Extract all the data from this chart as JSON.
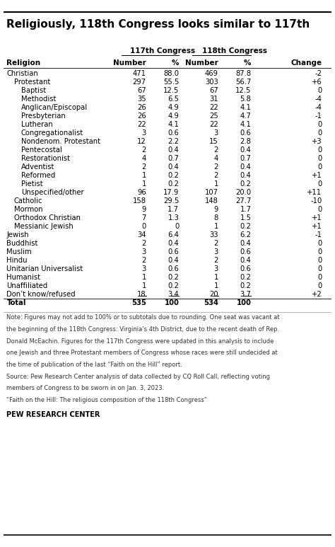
{
  "title": "Religiously, 118th Congress looks similar to 117th",
  "rows": [
    {
      "label": "Christian",
      "indent": 0,
      "bold": false,
      "c117n": "471",
      "c117p": "88.0",
      "c118n": "469",
      "c118p": "87.8",
      "change": "-2",
      "underline": false
    },
    {
      "label": "Protestant",
      "indent": 1,
      "bold": false,
      "c117n": "297",
      "c117p": "55.5",
      "c118n": "303",
      "c118p": "56.7",
      "change": "+6",
      "underline": false
    },
    {
      "label": "Baptist",
      "indent": 2,
      "bold": false,
      "c117n": "67",
      "c117p": "12.5",
      "c118n": "67",
      "c118p": "12.5",
      "change": "0",
      "underline": false
    },
    {
      "label": "Methodist",
      "indent": 2,
      "bold": false,
      "c117n": "35",
      "c117p": "6.5",
      "c118n": "31",
      "c118p": "5.8",
      "change": "-4",
      "underline": false
    },
    {
      "label": "Anglican/Episcopal",
      "indent": 2,
      "bold": false,
      "c117n": "26",
      "c117p": "4.9",
      "c118n": "22",
      "c118p": "4.1",
      "change": "-4",
      "underline": false
    },
    {
      "label": "Presbyterian",
      "indent": 2,
      "bold": false,
      "c117n": "26",
      "c117p": "4.9",
      "c118n": "25",
      "c118p": "4.7",
      "change": "-1",
      "underline": false
    },
    {
      "label": "Lutheran",
      "indent": 2,
      "bold": false,
      "c117n": "22",
      "c117p": "4.1",
      "c118n": "22",
      "c118p": "4.1",
      "change": "0",
      "underline": false
    },
    {
      "label": "Congregationalist",
      "indent": 2,
      "bold": false,
      "c117n": "3",
      "c117p": "0.6",
      "c118n": "3",
      "c118p": "0.6",
      "change": "0",
      "underline": false
    },
    {
      "label": "Nondenom. Protestant",
      "indent": 2,
      "bold": false,
      "c117n": "12",
      "c117p": "2.2",
      "c118n": "15",
      "c118p": "2.8",
      "change": "+3",
      "underline": false
    },
    {
      "label": "Pentecostal",
      "indent": 2,
      "bold": false,
      "c117n": "2",
      "c117p": "0.4",
      "c118n": "2",
      "c118p": "0.4",
      "change": "0",
      "underline": false
    },
    {
      "label": "Restorationist",
      "indent": 2,
      "bold": false,
      "c117n": "4",
      "c117p": "0.7",
      "c118n": "4",
      "c118p": "0.7",
      "change": "0",
      "underline": false
    },
    {
      "label": "Adventist",
      "indent": 2,
      "bold": false,
      "c117n": "2",
      "c117p": "0.4",
      "c118n": "2",
      "c118p": "0.4",
      "change": "0",
      "underline": false
    },
    {
      "label": "Reformed",
      "indent": 2,
      "bold": false,
      "c117n": "1",
      "c117p": "0.2",
      "c118n": "2",
      "c118p": "0.4",
      "change": "+1",
      "underline": false
    },
    {
      "label": "Pietist",
      "indent": 2,
      "bold": false,
      "c117n": "1",
      "c117p": "0.2",
      "c118n": "1",
      "c118p": "0.2",
      "change": "0",
      "underline": false
    },
    {
      "label": "Unspecified/other",
      "indent": 2,
      "bold": false,
      "c117n": "96",
      "c117p": "17.9",
      "c118n": "107",
      "c118p": "20.0",
      "change": "+11",
      "underline": false
    },
    {
      "label": "Catholic",
      "indent": 1,
      "bold": false,
      "c117n": "158",
      "c117p": "29.5",
      "c118n": "148",
      "c118p": "27.7",
      "change": "-10",
      "underline": false
    },
    {
      "label": "Mormon",
      "indent": 1,
      "bold": false,
      "c117n": "9",
      "c117p": "1.7",
      "c118n": "9",
      "c118p": "1.7",
      "change": "0",
      "underline": false
    },
    {
      "label": "Orthodox Christian",
      "indent": 1,
      "bold": false,
      "c117n": "7",
      "c117p": "1.3",
      "c118n": "8",
      "c118p": "1.5",
      "change": "+1",
      "underline": false
    },
    {
      "label": "Messianic Jewish",
      "indent": 1,
      "bold": false,
      "c117n": "0",
      "c117p": "0",
      "c118n": "1",
      "c118p": "0.2",
      "change": "+1",
      "underline": false
    },
    {
      "label": "Jewish",
      "indent": 0,
      "bold": false,
      "c117n": "34",
      "c117p": "6.4",
      "c118n": "33",
      "c118p": "6.2",
      "change": "-1",
      "underline": false
    },
    {
      "label": "Buddhist",
      "indent": 0,
      "bold": false,
      "c117n": "2",
      "c117p": "0.4",
      "c118n": "2",
      "c118p": "0.4",
      "change": "0",
      "underline": false
    },
    {
      "label": "Muslim",
      "indent": 0,
      "bold": false,
      "c117n": "3",
      "c117p": "0.6",
      "c118n": "3",
      "c118p": "0.6",
      "change": "0",
      "underline": false
    },
    {
      "label": "Hindu",
      "indent": 0,
      "bold": false,
      "c117n": "2",
      "c117p": "0.4",
      "c118n": "2",
      "c118p": "0.4",
      "change": "0",
      "underline": false
    },
    {
      "label": "Unitarian Universalist",
      "indent": 0,
      "bold": false,
      "c117n": "3",
      "c117p": "0.6",
      "c118n": "3",
      "c118p": "0.6",
      "change": "0",
      "underline": false
    },
    {
      "label": "Humanist",
      "indent": 0,
      "bold": false,
      "c117n": "1",
      "c117p": "0.2",
      "c118n": "1",
      "c118p": "0.2",
      "change": "0",
      "underline": false
    },
    {
      "label": "Unaffiliated",
      "indent": 0,
      "bold": false,
      "c117n": "1",
      "c117p": "0.2",
      "c118n": "1",
      "c118p": "0.2",
      "change": "0",
      "underline": false
    },
    {
      "label": "Don’t know/refused",
      "indent": 0,
      "bold": false,
      "c117n": "18",
      "c117p": "3.4",
      "c118n": "20",
      "c118p": "3.7",
      "change": "+2",
      "underline": true
    },
    {
      "label": "Total",
      "indent": 0,
      "bold": true,
      "c117n": "535",
      "c117p": "100",
      "c118n": "534",
      "c118p": "100",
      "change": "",
      "underline": false
    }
  ],
  "note_line1": "Note: Figures may not add to 100% or to subtotals due to rounding. One seat was vacant at",
  "note_line2": "the beginning of the 118th Congress: Virginia’s 4th District, due to the recent death of Rep.",
  "note_line3": "Donald McEachin. Figures for the 117th Congress were updated in this analysis to include",
  "note_line4": "one Jewish and three Protestant members of Congress whose races were still undecided at",
  "note_line5": "the time of publication of the last “Faith on the Hill” report.",
  "note_line6": "Source: Pew Research Center analysis of data collected by CQ Roll Call, reflecting voting",
  "note_line7": "members of Congress to be sworn in on Jan. 3, 2023.",
  "note_line8": "“Faith on the Hill: The religious composition of the 118th Congress”",
  "pew_label": "PEW RESEARCH CENTER",
  "bg_color": "#ffffff",
  "text_color": "#000000",
  "note_color": "#333333"
}
